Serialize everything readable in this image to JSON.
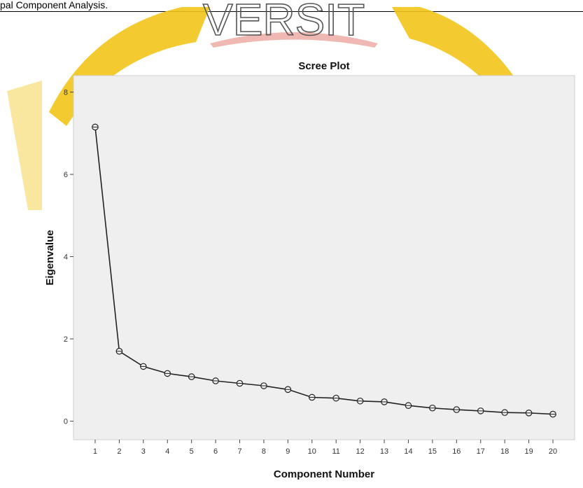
{
  "document": {
    "caption": "pal Component Analysis.",
    "watermark_text": "VERSIT"
  },
  "colors": {
    "watermark_gold": "#f2c51a",
    "watermark_red": "#e89a92",
    "plot_background": "#efefef",
    "line": "#222222"
  },
  "chart_data": {
    "type": "line",
    "title": "Scree Plot",
    "xlabel": "Component Number",
    "ylabel": "Eigenvalue",
    "x": [
      1,
      2,
      3,
      4,
      5,
      6,
      7,
      8,
      9,
      10,
      11,
      12,
      13,
      14,
      15,
      16,
      17,
      18,
      19,
      20
    ],
    "y": [
      7.15,
      1.7,
      1.33,
      1.16,
      1.08,
      0.98,
      0.92,
      0.86,
      0.77,
      0.58,
      0.56,
      0.49,
      0.47,
      0.38,
      0.32,
      0.28,
      0.25,
      0.21,
      0.2,
      0.17
    ],
    "xlim": [
      0.1,
      20.9
    ],
    "ylim": [
      -0.45,
      8.4
    ],
    "xticks": [
      "1",
      "2",
      "3",
      "4",
      "5",
      "6",
      "7",
      "8",
      "9",
      "10",
      "11",
      "12",
      "13",
      "14",
      "15",
      "16",
      "17",
      "18",
      "19",
      "20"
    ],
    "yticks": [
      "0",
      "2",
      "4",
      "6",
      "8"
    ],
    "marker": "open-circle",
    "grid": false
  }
}
